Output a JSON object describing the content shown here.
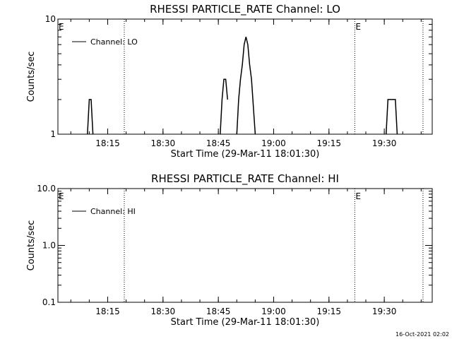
{
  "chart_data": [
    {
      "type": "line",
      "title": "RHESSI PARTICLE_RATE Channel: LO",
      "xlabel": "Start Time (29-Mar-11 18:01:30)",
      "ylabel": "Counts/sec",
      "y_scale": "log",
      "ylim": [
        1,
        10
      ],
      "y_ticks": [
        "1",
        "10"
      ],
      "xlim": [
        "18:01:30",
        "19:43:00"
      ],
      "x_ticks": [
        "18:15",
        "18:30",
        "18:45",
        "19:00",
        "19:15",
        "19:30"
      ],
      "legend": {
        "placement": "top-left",
        "entries": [
          "Channel: LO"
        ]
      },
      "markers": [
        {
          "text": "E",
          "time": "18:01:30"
        },
        {
          "text": "E",
          "time": "19:22:00"
        }
      ],
      "dotted_lines": [
        "18:19:30",
        "19:22:00",
        "19:40:30"
      ],
      "series": [
        {
          "name": "Channel: LO",
          "segments": [
            [
              [
                "18:09:30",
                1
              ],
              [
                "18:10:00",
                2
              ],
              [
                "18:10:30",
                2
              ],
              [
                "18:11:00",
                1
              ]
            ],
            [
              [
                "18:45:30",
                1
              ],
              [
                "18:46:00",
                2
              ],
              [
                "18:46:30",
                3
              ],
              [
                "18:47:00",
                3
              ],
              [
                "18:47:30",
                2
              ]
            ],
            [
              [
                "18:50:00",
                1
              ],
              [
                "18:50:30",
                2
              ],
              [
                "18:51:00",
                3
              ],
              [
                "18:51:30",
                4
              ],
              [
                "18:52:00",
                6
              ],
              [
                "18:52:30",
                7
              ],
              [
                "18:53:00",
                6
              ],
              [
                "18:53:30",
                4
              ],
              [
                "18:54:00",
                3
              ],
              [
                "18:55:00",
                1
              ]
            ],
            [
              [
                "19:30:30",
                1
              ],
              [
                "19:31:00",
                2
              ],
              [
                "19:33:00",
                2
              ],
              [
                "19:33:30",
                1
              ]
            ]
          ]
        }
      ]
    },
    {
      "type": "line",
      "title": "RHESSI PARTICLE_RATE Channel: HI",
      "xlabel": "Start Time (29-Mar-11 18:01:30)",
      "ylabel": "Counts/sec",
      "y_scale": "log",
      "ylim": [
        0.1,
        10
      ],
      "y_ticks": [
        "0.1",
        "1.0",
        "10.0"
      ],
      "xlim": [
        "18:01:30",
        "19:43:00"
      ],
      "x_ticks": [
        "18:15",
        "18:30",
        "18:45",
        "19:00",
        "19:15",
        "19:30"
      ],
      "legend": {
        "placement": "top-left",
        "entries": [
          "Channel: HI"
        ]
      },
      "markers": [
        {
          "text": "E",
          "time": "18:01:30"
        },
        {
          "text": "E",
          "time": "19:22:00"
        }
      ],
      "dotted_lines": [
        "18:19:30",
        "19:22:00",
        "19:40:30"
      ],
      "series": [
        {
          "name": "Channel: HI",
          "segments": []
        }
      ]
    }
  ],
  "footer": {
    "timestamp": "16-Oct-2021 02:02"
  }
}
